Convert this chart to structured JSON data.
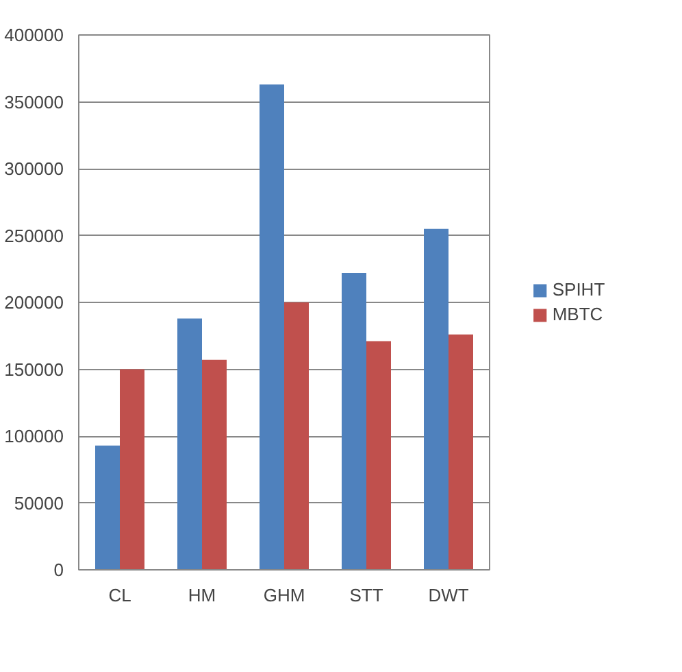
{
  "chart_data": {
    "type": "bar",
    "categories": [
      "CL",
      "HM",
      "GHM",
      "STT",
      "DWT"
    ],
    "series": [
      {
        "name": "SPIHT",
        "color": "#4f81bd",
        "values": [
          93000,
          188000,
          363000,
          222000,
          255000
        ]
      },
      {
        "name": "MBTC",
        "color": "#c0504d",
        "values": [
          150000,
          157000,
          200000,
          171000,
          176000
        ]
      }
    ],
    "ylim": [
      0,
      400000
    ],
    "yticks": [
      0,
      50000,
      100000,
      150000,
      200000,
      250000,
      300000,
      350000,
      400000
    ],
    "grid": "y",
    "legend": "right"
  }
}
